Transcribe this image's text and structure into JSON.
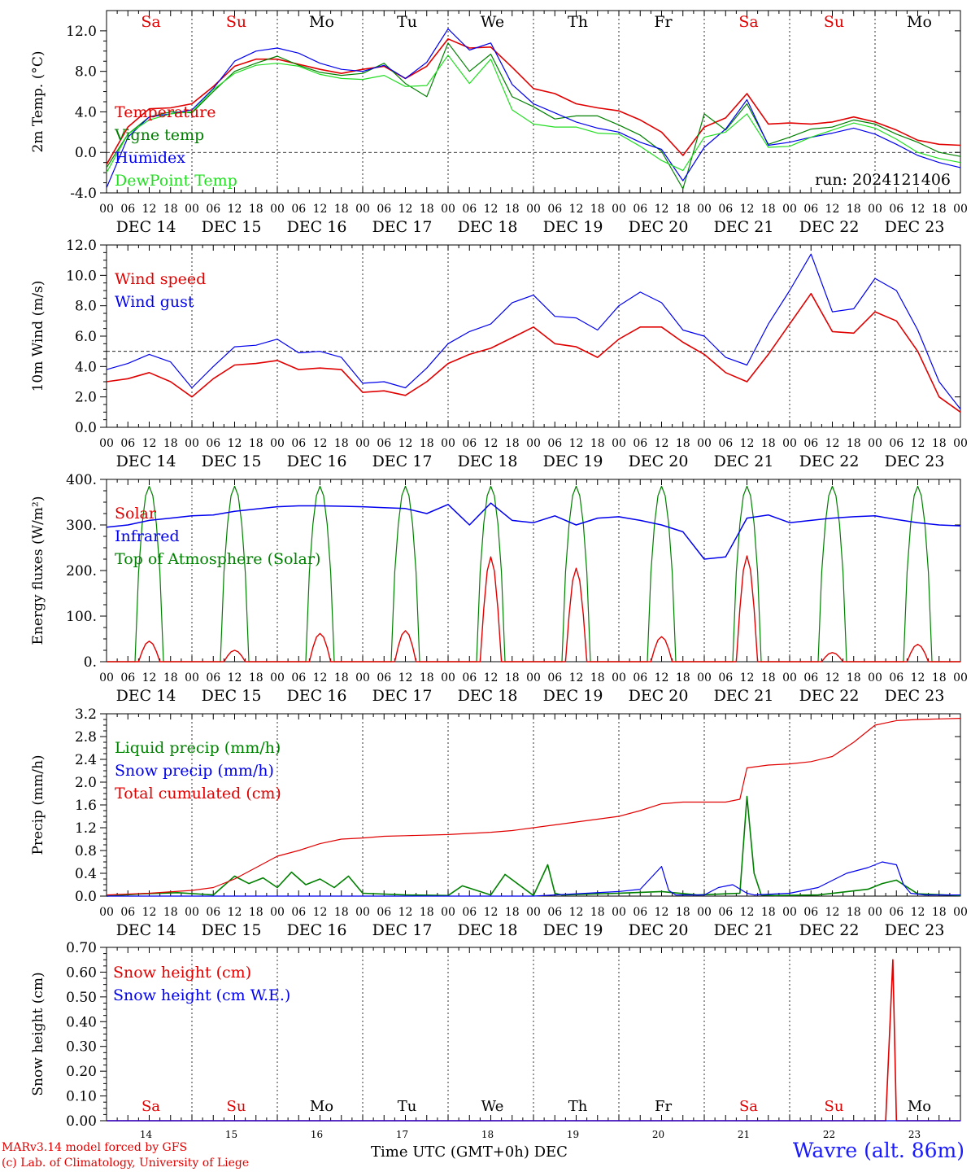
{
  "footer": {
    "model_line": "MARv3.14 model forced by GFS",
    "lab_line": "(c) Lab. of Climatology, University of Liege",
    "time_caption": "Time UTC (GMT+0h) DEC",
    "station": "Wavre (alt. 86m)"
  },
  "colors": {
    "red": "#e00000",
    "green": "#008000",
    "blue": "#0000ee",
    "lightgreen": "#22dd22"
  },
  "chart_data": [
    {
      "type": "line",
      "ylabel": "2m Temp. (°C)",
      "ylim": [
        -4,
        14
      ],
      "yticks": [
        -4,
        0,
        4,
        8,
        12
      ],
      "ytick_labels": [
        "-4.0",
        "0.0",
        "4.0",
        "8.0",
        "12.0"
      ],
      "ref_line": 0,
      "day_labels_top": [
        "Sa",
        "Su",
        "Mo",
        "Tu",
        "We",
        "Th",
        "Fr",
        "Sa",
        "Su",
        "Mo"
      ],
      "day_labels_red": [
        true,
        true,
        false,
        false,
        false,
        false,
        false,
        true,
        true,
        false
      ],
      "hour_tick_labels": [
        "00",
        "06",
        "12",
        "18"
      ],
      "date_labels": [
        "DEC 14",
        "DEC 15",
        "DEC 16",
        "DEC 17",
        "DEC 18",
        "DEC 19",
        "DEC 20",
        "DEC 21",
        "DEC 22",
        "DEC 23"
      ],
      "annotation": "run: 2024121406",
      "x_hours": [
        0,
        6,
        12,
        18,
        24,
        30,
        36,
        42,
        48,
        54,
        60,
        66,
        72,
        78,
        84,
        90,
        96,
        102,
        108,
        114,
        120,
        126,
        132,
        138,
        144,
        150,
        156,
        162,
        168,
        174,
        180,
        186,
        192,
        198,
        204,
        210,
        216,
        222,
        228,
        234,
        240
      ],
      "series": [
        {
          "name": "Temperature",
          "color": "#e00000",
          "values": [
            -1.2,
            2.5,
            4.3,
            4.4,
            4.8,
            6.5,
            8.5,
            9.2,
            9.2,
            8.7,
            8.2,
            7.8,
            8.2,
            8.5,
            7.3,
            8.5,
            11.2,
            10.3,
            10.4,
            8.4,
            6.3,
            5.8,
            4.8,
            4.4,
            4.1,
            3.2,
            2.0,
            -0.3,
            2.5,
            3.4,
            5.8,
            2.8,
            2.9,
            2.8,
            3.0,
            3.5,
            3.0,
            2.2,
            1.2,
            0.8,
            0.7
          ]
        },
        {
          "name": "Vigne temp",
          "color": "#008000",
          "values": [
            -1.5,
            1.8,
            3.5,
            4.0,
            3.9,
            6.0,
            8.0,
            8.8,
            9.5,
            8.6,
            7.9,
            7.6,
            7.8,
            8.8,
            6.8,
            5.5,
            10.8,
            8.0,
            9.7,
            5.5,
            4.5,
            3.3,
            3.6,
            3.6,
            2.7,
            1.7,
            0.1,
            -3.6,
            3.8,
            2.2,
            4.8,
            0.8,
            1.5,
            2.3,
            2.5,
            3.2,
            2.8,
            1.8,
            1.0,
            0.0,
            -0.4
          ]
        },
        {
          "name": "Humidex",
          "color": "#0000ee",
          "values": [
            -3.5,
            1.5,
            3.5,
            3.8,
            4.2,
            6.3,
            9.0,
            10.0,
            10.3,
            9.8,
            8.8,
            8.2,
            8.0,
            8.6,
            7.3,
            8.9,
            12.2,
            10.1,
            10.8,
            6.7,
            4.8,
            3.9,
            3.0,
            2.4,
            2.0,
            1.0,
            0.3,
            -2.8,
            0.5,
            2.3,
            5.2,
            0.7,
            1.0,
            1.5,
            1.9,
            2.4,
            1.8,
            0.8,
            -0.3,
            -1.0,
            -1.5
          ]
        },
        {
          "name": "DewPoint Temp",
          "color": "#22dd22",
          "values": [
            -2.0,
            1.8,
            3.2,
            3.8,
            4.0,
            6.2,
            7.8,
            8.6,
            8.8,
            8.5,
            7.7,
            7.3,
            7.2,
            7.6,
            6.5,
            6.6,
            9.6,
            6.8,
            9.2,
            4.2,
            2.8,
            2.5,
            2.5,
            1.9,
            1.8,
            0.6,
            -0.8,
            -1.8,
            1.5,
            2.0,
            3.8,
            0.5,
            0.6,
            1.5,
            2.2,
            2.9,
            2.4,
            1.3,
            0.0,
            -0.6,
            -1.0
          ]
        }
      ]
    },
    {
      "type": "line",
      "ylabel": "10m Wind (m/s)",
      "ylim": [
        0,
        12
      ],
      "yticks": [
        0,
        2,
        4,
        6,
        8,
        10,
        12
      ],
      "ytick_labels": [
        "0.0",
        "2.0",
        "4.0",
        "6.0",
        "8.0",
        "10.0",
        "12.0"
      ],
      "ref_line": 5,
      "hour_tick_labels": [
        "00",
        "06",
        "12",
        "18"
      ],
      "date_labels": [
        "DEC 14",
        "DEC 15",
        "DEC 16",
        "DEC 17",
        "DEC 18",
        "DEC 19",
        "DEC 20",
        "DEC 21",
        "DEC 22",
        "DEC 23"
      ],
      "x_hours": [
        0,
        6,
        12,
        18,
        24,
        30,
        36,
        42,
        48,
        54,
        60,
        66,
        72,
        78,
        84,
        90,
        96,
        102,
        108,
        114,
        120,
        126,
        132,
        138,
        144,
        150,
        156,
        162,
        168,
        174,
        180,
        186,
        192,
        198,
        204,
        210,
        216,
        222,
        228,
        234,
        240
      ],
      "series": [
        {
          "name": "Wind speed",
          "color": "#e00000",
          "values": [
            3.0,
            3.2,
            3.6,
            3.0,
            2.0,
            3.2,
            4.1,
            4.2,
            4.4,
            3.8,
            3.9,
            3.8,
            2.3,
            2.4,
            2.1,
            3.0,
            4.2,
            4.8,
            5.2,
            5.9,
            6.6,
            5.5,
            5.3,
            4.6,
            5.8,
            6.6,
            6.6,
            5.6,
            4.8,
            3.6,
            3.0,
            4.8,
            6.8,
            8.8,
            6.3,
            6.2,
            7.6,
            7.0,
            5.0,
            2.0,
            1.0
          ]
        },
        {
          "name": "Wind gust",
          "color": "#0000ee",
          "values": [
            3.8,
            4.2,
            4.8,
            4.3,
            2.6,
            4.0,
            5.3,
            5.4,
            5.8,
            4.9,
            5.0,
            4.6,
            2.9,
            3.0,
            2.6,
            3.9,
            5.5,
            6.3,
            6.8,
            8.2,
            8.7,
            7.3,
            7.2,
            6.4,
            8.0,
            8.9,
            8.2,
            6.4,
            6.0,
            4.6,
            4.1,
            6.8,
            9.0,
            11.4,
            7.6,
            7.8,
            9.8,
            9.0,
            6.4,
            3.0,
            1.2
          ]
        }
      ]
    },
    {
      "type": "line",
      "ylabel": "Energy fluxes (W/m²)",
      "ylim": [
        0,
        400
      ],
      "yticks": [
        0,
        100,
        200,
        300,
        400
      ],
      "ytick_labels": [
        "0.",
        "100.",
        "200.",
        "300.",
        "400."
      ],
      "hour_tick_labels": [
        "00",
        "06",
        "12",
        "18"
      ],
      "date_labels": [
        "DEC 14",
        "DEC 15",
        "DEC 16",
        "DEC 17",
        "DEC 18",
        "DEC 19",
        "DEC 20",
        "DEC 21",
        "DEC 22",
        "DEC 23"
      ],
      "solar_peaks": [
        45,
        25,
        62,
        68,
        230,
        205,
        55,
        232,
        20,
        38
      ],
      "toa_peak": 385,
      "infrared_x_hours": [
        0,
        6,
        12,
        18,
        24,
        30,
        36,
        42,
        48,
        54,
        60,
        66,
        72,
        78,
        84,
        90,
        96,
        102,
        108,
        114,
        120,
        126,
        132,
        138,
        144,
        150,
        156,
        162,
        168,
        174,
        180,
        186,
        192,
        198,
        204,
        210,
        216,
        222,
        228,
        234,
        240
      ],
      "series": [
        {
          "name": "Solar",
          "color": "#e00000"
        },
        {
          "name": "Infrared",
          "color": "#0000ee",
          "values": [
            295,
            300,
            310,
            315,
            320,
            322,
            330,
            335,
            340,
            342,
            342,
            341,
            340,
            338,
            336,
            325,
            345,
            300,
            348,
            310,
            305,
            320,
            300,
            315,
            318,
            310,
            300,
            285,
            225,
            230,
            315,
            322,
            305,
            310,
            315,
            318,
            320,
            312,
            305,
            300,
            298
          ]
        },
        {
          "name": "Top of Atmosphere (Solar)",
          "color": "#008000"
        }
      ]
    },
    {
      "type": "line",
      "ylabel": "Precip (mm/h)",
      "ylim": [
        0,
        3.2
      ],
      "yticks": [
        0,
        0.4,
        0.8,
        1.2,
        1.6,
        2.0,
        2.4,
        2.8,
        3.2
      ],
      "ytick_labels": [
        "0.0",
        "0.4",
        "0.8",
        "1.2",
        "1.6",
        "2.0",
        "2.4",
        "2.8",
        "3.2"
      ],
      "hour_tick_labels": [
        "00",
        "06",
        "12",
        "18"
      ],
      "date_labels": [
        "DEC 14",
        "DEC 15",
        "DEC 16",
        "DEC 17",
        "DEC 18",
        "DEC 19",
        "DEC 20",
        "DEC 21",
        "DEC 22",
        "DEC 23"
      ],
      "series": [
        {
          "name": "Liquid precip (mm/h)",
          "color": "#008000",
          "x_hours": [
            0,
            10,
            20,
            30,
            36,
            40,
            44,
            48,
            52,
            56,
            60,
            64,
            68,
            72,
            84,
            96,
            100,
            108,
            112,
            120,
            124,
            126,
            128,
            144,
            156,
            166,
            178,
            180,
            182,
            184,
            188,
            200,
            214,
            218,
            222,
            228,
            240
          ],
          "values": [
            0,
            0.04,
            0.06,
            0.02,
            0.35,
            0.22,
            0.32,
            0.15,
            0.42,
            0.2,
            0.3,
            0.15,
            0.35,
            0.05,
            0.02,
            0.01,
            0.18,
            0.02,
            0.38,
            0.01,
            0.55,
            0.05,
            0.02,
            0.05,
            0.08,
            0.02,
            0.05,
            1.75,
            0.4,
            0.02,
            0.01,
            0.02,
            0.12,
            0.22,
            0.28,
            0.04,
            0.01
          ]
        },
        {
          "name": "Snow precip (mm/h)",
          "color": "#0000ee",
          "x_hours": [
            0,
            60,
            120,
            144,
            150,
            156,
            158,
            160,
            168,
            172,
            176,
            180,
            182,
            192,
            200,
            208,
            214,
            218,
            222,
            224,
            226,
            230,
            240
          ],
          "values": [
            0,
            0,
            0,
            0.08,
            0.12,
            0.52,
            0.1,
            0.02,
            0.02,
            0.15,
            0.2,
            0.05,
            0.02,
            0.05,
            0.15,
            0.4,
            0.5,
            0.6,
            0.55,
            0.2,
            0.05,
            0.02,
            0.02
          ]
        },
        {
          "name": "Total cumulated (cm)",
          "color": "#e00000",
          "x_hours": [
            0,
            12,
            24,
            30,
            36,
            42,
            48,
            54,
            60,
            66,
            72,
            78,
            84,
            96,
            108,
            114,
            120,
            126,
            132,
            138,
            144,
            150,
            156,
            162,
            168,
            174,
            178,
            180,
            186,
            192,
            198,
            204,
            210,
            216,
            222,
            228,
            234,
            240
          ],
          "values": [
            0.02,
            0.05,
            0.1,
            0.15,
            0.3,
            0.5,
            0.7,
            0.8,
            0.92,
            1.0,
            1.02,
            1.05,
            1.06,
            1.08,
            1.12,
            1.15,
            1.2,
            1.25,
            1.3,
            1.35,
            1.4,
            1.5,
            1.62,
            1.65,
            1.65,
            1.65,
            1.7,
            2.25,
            2.3,
            2.32,
            2.36,
            2.45,
            2.7,
            3.0,
            3.08,
            3.1,
            3.11,
            3.12
          ]
        }
      ]
    },
    {
      "type": "line",
      "ylabel": "Snow height (cm)",
      "ylim": [
        0,
        0.7
      ],
      "yticks": [
        0,
        0.1,
        0.2,
        0.3,
        0.4,
        0.5,
        0.6,
        0.7
      ],
      "ytick_labels": [
        "0.00",
        "0.10",
        "0.20",
        "0.30",
        "0.40",
        "0.50",
        "0.60",
        "0.70"
      ],
      "day_labels_bottom": [
        "Sa",
        "Su",
        "Mo",
        "Tu",
        "We",
        "Th",
        "Fr",
        "Sa",
        "Su",
        "Mo"
      ],
      "day_labels_red": [
        true,
        true,
        false,
        false,
        false,
        false,
        false,
        true,
        true,
        false
      ],
      "day_number_labels": [
        "14",
        "15",
        "16",
        "17",
        "18",
        "19",
        "20",
        "21",
        "22",
        "23"
      ],
      "series": [
        {
          "name": "Snow height (cm)",
          "color": "#e00000",
          "x_hours": [
            0,
            219,
            221,
            222,
            240
          ],
          "values": [
            0,
            0,
            0.65,
            0,
            0
          ]
        },
        {
          "name": "Snow height (cm W.E.)",
          "color": "#0000ee",
          "x_hours": [
            0,
            240
          ],
          "values": [
            0,
            0
          ]
        }
      ]
    }
  ]
}
